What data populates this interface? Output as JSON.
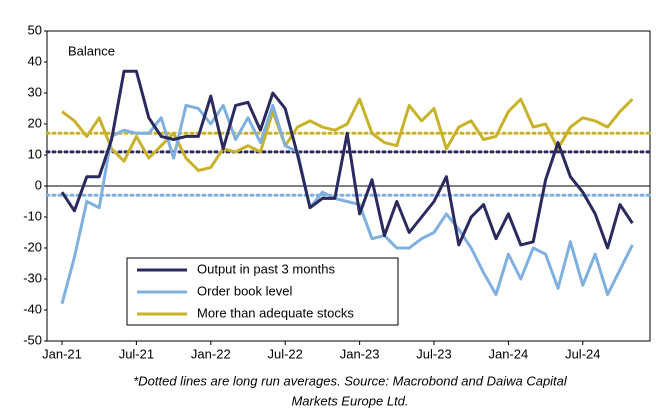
{
  "chart_data": {
    "type": "line",
    "y_label": "Balance",
    "categories": [
      "Jan-21",
      null,
      null,
      null,
      null,
      null,
      "Jul-21",
      null,
      null,
      null,
      null,
      null,
      "Jan-22",
      null,
      null,
      null,
      null,
      null,
      "Jul-22",
      null,
      null,
      null,
      null,
      null,
      "Jan-23",
      null,
      null,
      null,
      null,
      null,
      "Jul-23",
      null,
      null,
      null,
      null,
      null,
      "Jan-24",
      null,
      null,
      null,
      null,
      null,
      "Jul-24",
      null,
      null,
      null,
      null
    ],
    "series": [
      {
        "name": "Output in past 3 months",
        "color": "#2b2a5e",
        "values": [
          -2,
          -8,
          3,
          3,
          15,
          37,
          37,
          22,
          16,
          15,
          16,
          16,
          29,
          12,
          26,
          27,
          18,
          30,
          25,
          10,
          -7,
          -4,
          -4,
          17,
          -9,
          2,
          -16,
          -5,
          -15,
          -10,
          -5,
          3,
          -19,
          -10,
          -6,
          -17,
          -9,
          -19,
          -18,
          2,
          14,
          3,
          -2,
          -9,
          -20,
          -6,
          -12
        ]
      },
      {
        "name": "Order book level",
        "color": "#7fb0e0",
        "values": [
          -38,
          -23,
          -5,
          -7,
          16,
          18,
          17,
          17,
          22,
          9,
          26,
          25,
          20,
          26,
          15,
          22,
          14,
          26,
          13,
          11,
          -7,
          -2,
          -4,
          -5,
          -6,
          -17,
          -16,
          -20,
          -20,
          -17,
          -15,
          -9,
          -14,
          -20,
          -28,
          -35,
          -22,
          -30,
          -20,
          -22,
          -33,
          -18,
          -32,
          -22,
          -35,
          -27,
          -19
        ]
      },
      {
        "name": "More than adequate stocks",
        "color": "#c8b22a",
        "values": [
          24,
          21,
          16,
          22,
          12,
          8,
          16,
          9,
          13,
          17,
          9,
          5,
          6,
          12,
          11,
          13,
          11,
          24,
          13,
          19,
          21,
          19,
          18,
          20,
          28,
          17,
          14,
          13,
          26,
          21,
          25,
          12,
          19,
          21,
          15,
          16,
          24,
          28,
          19,
          20,
          12,
          19,
          22,
          21,
          19,
          24,
          28
        ]
      }
    ],
    "reference_lines": [
      {
        "value": 11,
        "color": "#2b2a5e"
      },
      {
        "value": -3,
        "color": "#7fb0e0"
      },
      {
        "value": 17,
        "color": "#c8b22a"
      }
    ],
    "ylim": [
      -50,
      50
    ],
    "yticks": [
      -50,
      -40,
      -30,
      -20,
      -10,
      0,
      10,
      20,
      30,
      40,
      50
    ],
    "legend": "lower left",
    "notes": [
      "*Dotted lines are long run averages. Source: Macrobond and Daiwa Capital",
      "Markets Europe Ltd."
    ]
  }
}
